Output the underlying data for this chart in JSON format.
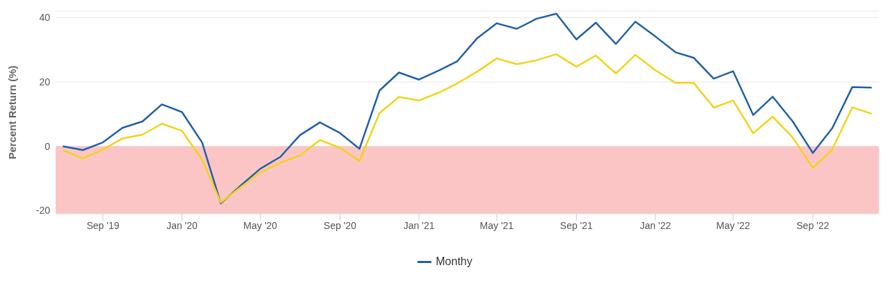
{
  "chart_data": {
    "type": "line",
    "ylabel": "Percent Return (%)",
    "x": [
      "2019-07",
      "2019-08",
      "2019-09",
      "2019-10",
      "2019-11",
      "2019-12",
      "2020-01",
      "2020-02",
      "2020-03",
      "2020-04",
      "2020-05",
      "2020-06",
      "2020-07",
      "2020-08",
      "2020-09",
      "2020-10",
      "2020-11",
      "2020-12",
      "2021-01",
      "2021-02",
      "2021-03",
      "2021-04",
      "2021-05",
      "2021-06",
      "2021-07",
      "2021-08",
      "2021-09",
      "2021-10",
      "2021-11",
      "2021-12",
      "2022-01",
      "2022-02",
      "2022-03",
      "2022-04",
      "2022-05",
      "2022-06",
      "2022-07",
      "2022-08",
      "2022-09",
      "2022-10",
      "2022-11",
      "2022-12"
    ],
    "series": [
      {
        "name": "Monthy",
        "color": "#1f5fa8",
        "values": [
          0.0,
          -1.2,
          1.2,
          5.7,
          7.7,
          13.0,
          10.6,
          1.2,
          -17.8,
          -12.2,
          -7.0,
          -3.3,
          3.4,
          7.4,
          4.1,
          -0.8,
          17.3,
          22.9,
          20.7,
          23.6,
          26.4,
          33.6,
          38.2,
          36.5,
          39.6,
          41.2,
          33.2,
          38.4,
          31.8,
          38.7,
          34.1,
          29.2,
          27.5,
          21.0,
          23.3,
          9.7,
          15.4,
          7.7,
          -2.1,
          5.6,
          18.4,
          18.2
        ]
      },
      {
        "color": "#f2d318",
        "values": [
          -1.2,
          -3.8,
          -1.0,
          2.4,
          3.6,
          7.0,
          4.8,
          -4.1,
          -17.5,
          -12.7,
          -8.2,
          -5.1,
          -2.9,
          1.9,
          -0.5,
          -4.6,
          10.3,
          15.3,
          14.2,
          16.7,
          19.5,
          23.2,
          27.3,
          25.5,
          26.7,
          28.6,
          24.7,
          28.2,
          22.6,
          28.4,
          23.6,
          19.7,
          19.7,
          12.0,
          14.2,
          4.0,
          9.2,
          2.7,
          -6.8,
          -1.0,
          12.1,
          10.1
        ]
      }
    ],
    "xlim": [
      "2019-06-20",
      "2022-12-12"
    ],
    "xticks": [
      {
        "value": "2019-09",
        "label": "Sep '19"
      },
      {
        "value": "2020-01",
        "label": "Jan '20"
      },
      {
        "value": "2020-05",
        "label": "May '20"
      },
      {
        "value": "2020-09",
        "label": "Sep '20"
      },
      {
        "value": "2021-01",
        "label": "Jan '21"
      },
      {
        "value": "2021-05",
        "label": "May '21"
      },
      {
        "value": "2021-09",
        "label": "Sep '21"
      },
      {
        "value": "2022-01",
        "label": "Jan '22"
      },
      {
        "value": "2022-05",
        "label": "May '22"
      },
      {
        "value": "2022-09",
        "label": "Sep '22"
      }
    ],
    "ylim": [
      -21,
      42
    ],
    "yticks": [
      -20,
      0,
      20,
      40
    ],
    "bands": [
      {
        "axis": "y",
        "from": -21,
        "to": 0,
        "color": "#fcc5c5"
      }
    ],
    "grid": "y",
    "legend": "bottom",
    "marker": "none",
    "line_style": "solid"
  }
}
